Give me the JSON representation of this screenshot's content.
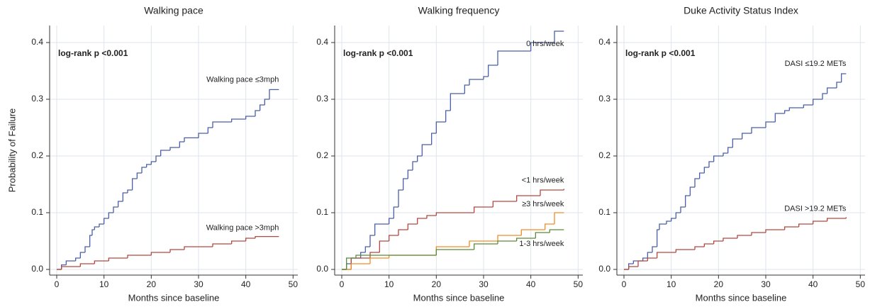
{
  "chart_data": [
    {
      "type": "step",
      "title": "Walking pace",
      "xlabel": "Months since baseline",
      "ylabel": "Probability of Failure",
      "annotation": "log-rank p <0.001",
      "grid": true,
      "xlim": [
        -1.5,
        51
      ],
      "ylim": [
        -0.01,
        0.43
      ],
      "xticks": [
        0,
        10,
        20,
        30,
        40,
        50
      ],
      "yticks": [
        {
          "value": 0,
          "label": "0.0"
        },
        0.1,
        0.2,
        0.3,
        0.4
      ],
      "series": [
        {
          "name": "Walking pace ≤3mph",
          "color": "#4a5fa8",
          "x": [
            0,
            1,
            2,
            4,
            5,
            6,
            7,
            7.5,
            8,
            9,
            10,
            11,
            12,
            13,
            14,
            15,
            16,
            17,
            18,
            19,
            20,
            21,
            22,
            24,
            26,
            27,
            30,
            32,
            33,
            37,
            40,
            42,
            43,
            44,
            45,
            47
          ],
          "values": [
            0,
            0.008,
            0.015,
            0.02,
            0.03,
            0.04,
            0.06,
            0.07,
            0.075,
            0.08,
            0.09,
            0.1,
            0.11,
            0.12,
            0.135,
            0.14,
            0.16,
            0.17,
            0.18,
            0.185,
            0.19,
            0.2,
            0.21,
            0.215,
            0.225,
            0.232,
            0.24,
            0.25,
            0.26,
            0.265,
            0.27,
            0.28,
            0.29,
            0.3,
            0.317,
            0.317
          ]
        },
        {
          "name": "Walking pace >3mph",
          "color": "#b5483e",
          "x": [
            0,
            1,
            5,
            8,
            11,
            15,
            20,
            24,
            27,
            33,
            37,
            40,
            42,
            47
          ],
          "values": [
            0,
            0.005,
            0.01,
            0.015,
            0.02,
            0.025,
            0.03,
            0.035,
            0.04,
            0.045,
            0.05,
            0.055,
            0.058,
            0.058
          ]
        }
      ]
    },
    {
      "type": "step",
      "title": "Walking frequency",
      "xlabel": "Months since baseline",
      "annotation": "log-rank p <0.001",
      "grid": true,
      "xlim": [
        -1.5,
        51
      ],
      "ylim": [
        -0.01,
        0.43
      ],
      "xticks": [
        0,
        10,
        20,
        30,
        40,
        50
      ],
      "yticks": [
        {
          "value": 0,
          "label": "0.0"
        },
        0.1,
        0.2,
        0.3,
        0.4
      ],
      "series": [
        {
          "name": "0 hrs/week",
          "color": "#4a5fa8",
          "x": [
            0,
            1,
            2,
            4,
            5,
            6,
            7,
            10,
            11,
            12,
            13,
            14,
            15,
            16,
            17,
            19,
            20,
            22,
            23,
            26,
            27,
            30,
            31,
            33,
            40,
            45,
            47
          ],
          "values": [
            0,
            0.01,
            0.02,
            0.03,
            0.04,
            0.06,
            0.08,
            0.09,
            0.11,
            0.14,
            0.16,
            0.175,
            0.19,
            0.2,
            0.22,
            0.24,
            0.26,
            0.28,
            0.31,
            0.325,
            0.335,
            0.34,
            0.36,
            0.385,
            0.4,
            0.42,
            0.42
          ]
        },
        {
          "name": "<1 hrs/week",
          "color": "#b5483e",
          "x": [
            0,
            2,
            6,
            8,
            10,
            12,
            14,
            16,
            18,
            20,
            28,
            32,
            37,
            42,
            47
          ],
          "values": [
            0,
            0.02,
            0.03,
            0.05,
            0.06,
            0.07,
            0.08,
            0.09,
            0.095,
            0.1,
            0.11,
            0.12,
            0.13,
            0.14,
            0.142
          ]
        },
        {
          "name": "≥3 hrs/week",
          "color": "#f08c2a",
          "x": [
            0,
            2,
            6,
            10,
            20,
            27,
            33,
            38,
            43,
            45,
            47
          ],
          "values": [
            0,
            0.01,
            0.02,
            0.025,
            0.04,
            0.05,
            0.06,
            0.07,
            0.08,
            0.1,
            0.1
          ]
        },
        {
          "name": "1-3 hrs/week",
          "color": "#5a8a3a",
          "x": [
            0,
            1,
            3,
            10,
            20,
            28,
            33,
            37,
            41,
            44,
            47
          ],
          "values": [
            0,
            0.02,
            0.025,
            0.025,
            0.035,
            0.045,
            0.05,
            0.055,
            0.065,
            0.07,
            0.07
          ]
        }
      ]
    },
    {
      "type": "step",
      "title": "Duke Activity Status Index",
      "xlabel": "Months since baseline",
      "annotation": "log-rank p <0.001",
      "grid": true,
      "xlim": [
        -1.5,
        51
      ],
      "ylim": [
        -0.01,
        0.43
      ],
      "xticks": [
        0,
        10,
        20,
        30,
        40,
        50
      ],
      "yticks": [
        {
          "value": 0,
          "label": "0.0"
        },
        0.1,
        0.2,
        0.3,
        0.4
      ],
      "series": [
        {
          "name": "DASI ≤19.2 METs",
          "color": "#4a5fa8",
          "x": [
            0,
            1,
            2,
            4,
            5,
            6,
            7,
            7.5,
            9,
            10,
            11,
            12,
            13,
            14,
            15,
            16,
            17,
            18,
            19,
            21,
            22,
            23,
            25,
            27,
            30,
            32,
            34,
            35,
            38,
            40,
            42,
            43,
            45,
            46,
            47
          ],
          "values": [
            0,
            0.01,
            0.015,
            0.02,
            0.03,
            0.04,
            0.07,
            0.08,
            0.085,
            0.09,
            0.1,
            0.11,
            0.13,
            0.145,
            0.16,
            0.17,
            0.18,
            0.19,
            0.2,
            0.205,
            0.215,
            0.23,
            0.24,
            0.25,
            0.26,
            0.275,
            0.28,
            0.285,
            0.29,
            0.3,
            0.31,
            0.32,
            0.33,
            0.345,
            0.345
          ]
        },
        {
          "name": "DASI >19.2 METs",
          "color": "#b5483e",
          "x": [
            0,
            1,
            3,
            5,
            7,
            11,
            15,
            17,
            19,
            21,
            24,
            27,
            30,
            34,
            37,
            40,
            43,
            47
          ],
          "values": [
            0,
            0.005,
            0.015,
            0.02,
            0.03,
            0.035,
            0.04,
            0.045,
            0.05,
            0.055,
            0.06,
            0.065,
            0.07,
            0.075,
            0.08,
            0.085,
            0.09,
            0.092
          ]
        }
      ]
    }
  ]
}
